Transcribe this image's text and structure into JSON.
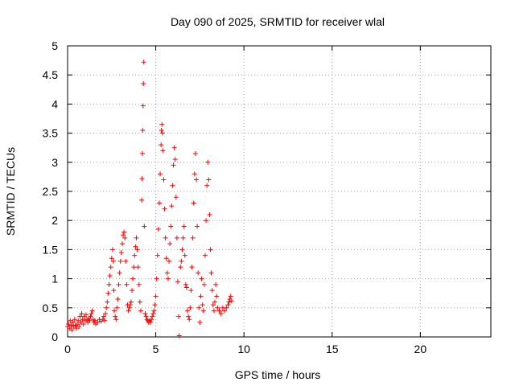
{
  "chart_data": {
    "type": "scatter",
    "title": "Day 090 of 2025, SRMTID for receiver wlal",
    "xlabel": "GPS time / hours",
    "ylabel": "SRMTID / TECUs",
    "xlim": [
      0,
      24
    ],
    "ylim": [
      0,
      5
    ],
    "xticks": [
      0,
      5,
      10,
      15,
      20
    ],
    "yticks": [
      0,
      0.5,
      1,
      1.5,
      2,
      2.5,
      3,
      3.5,
      4,
      4.5,
      5
    ],
    "xtick_labels": [
      "0",
      "5",
      "10",
      "15",
      "20"
    ],
    "ytick_labels": [
      "0",
      "0.5",
      "1",
      "1.5",
      "2",
      "2.5",
      "3",
      "3.5",
      "4",
      "4.5",
      "5"
    ],
    "grid": true,
    "marker": "+",
    "color": "#ff0000",
    "series": [
      {
        "name": "SRMTID",
        "points": [
          [
            0.0,
            0.18
          ],
          [
            0.05,
            0.22
          ],
          [
            0.1,
            0.15
          ],
          [
            0.15,
            0.28
          ],
          [
            0.2,
            0.2
          ],
          [
            0.25,
            0.12
          ],
          [
            0.3,
            0.25
          ],
          [
            0.35,
            0.18
          ],
          [
            0.4,
            0.3
          ],
          [
            0.45,
            0.2
          ],
          [
            0.5,
            0.15
          ],
          [
            0.55,
            0.22
          ],
          [
            0.6,
            0.28
          ],
          [
            0.65,
            0.18
          ],
          [
            0.7,
            0.35
          ],
          [
            0.75,
            0.25
          ],
          [
            0.8,
            0.4
          ],
          [
            0.85,
            0.3
          ],
          [
            0.9,
            0.22
          ],
          [
            0.95,
            0.35
          ],
          [
            1.0,
            0.28
          ],
          [
            1.05,
            0.38
          ],
          [
            1.1,
            0.3
          ],
          [
            1.15,
            0.25
          ],
          [
            1.2,
            0.32
          ],
          [
            1.25,
            0.28
          ],
          [
            1.3,
            0.35
          ],
          [
            1.35,
            0.4
          ],
          [
            1.4,
            0.45
          ],
          [
            1.45,
            0.3
          ],
          [
            1.5,
            0.25
          ],
          [
            1.55,
            0.28
          ],
          [
            1.6,
            0.22
          ],
          [
            1.7,
            0.25
          ],
          [
            1.8,
            0.3
          ],
          [
            1.9,
            0.27
          ],
          [
            2.0,
            0.3
          ],
          [
            2.05,
            0.35
          ],
          [
            2.1,
            0.28
          ],
          [
            2.15,
            0.4
          ],
          [
            2.2,
            0.5
          ],
          [
            2.25,
            0.6
          ],
          [
            2.3,
            0.75
          ],
          [
            2.35,
            0.9
          ],
          [
            2.4,
            1.05
          ],
          [
            2.45,
            1.2
          ],
          [
            2.5,
            1.35
          ],
          [
            2.55,
            1.5
          ],
          [
            2.6,
            1.3
          ],
          [
            2.62,
            0.8
          ],
          [
            2.65,
            0.45
          ],
          [
            2.7,
            0.35
          ],
          [
            2.75,
            0.3
          ],
          [
            2.8,
            0.5
          ],
          [
            2.85,
            0.65
          ],
          [
            2.9,
            0.9
          ],
          [
            2.95,
            1.1
          ],
          [
            3.0,
            1.3
          ],
          [
            3.05,
            1.45
          ],
          [
            3.1,
            1.6
          ],
          [
            3.15,
            1.75
          ],
          [
            3.2,
            1.8
          ],
          [
            3.25,
            1.7
          ],
          [
            3.3,
            1.3
          ],
          [
            3.35,
            0.9
          ],
          [
            3.4,
            0.55
          ],
          [
            3.45,
            0.45
          ],
          [
            3.5,
            0.5
          ],
          [
            3.55,
            0.55
          ],
          [
            3.6,
            0.6
          ],
          [
            3.65,
            0.8
          ],
          [
            3.7,
            1.0
          ],
          [
            3.75,
            1.2
          ],
          [
            3.8,
            1.4
          ],
          [
            3.85,
            1.55
          ],
          [
            3.9,
            1.7
          ],
          [
            3.95,
            1.5
          ],
          [
            4.0,
            1.2
          ],
          [
            4.05,
            0.9
          ],
          [
            4.1,
            0.6
          ],
          [
            4.15,
            0.45
          ],
          [
            4.2,
            2.35
          ],
          [
            4.22,
            2.72
          ],
          [
            4.24,
            3.15
          ],
          [
            4.26,
            3.55
          ],
          [
            4.28,
            3.97
          ],
          [
            4.3,
            4.35
          ],
          [
            4.32,
            4.72
          ],
          [
            4.35,
            1.9
          ],
          [
            4.4,
            0.4
          ],
          [
            4.45,
            0.35
          ],
          [
            4.5,
            0.3
          ],
          [
            4.55,
            0.28
          ],
          [
            4.6,
            0.25
          ],
          [
            4.65,
            0.28
          ],
          [
            4.7,
            0.25
          ],
          [
            4.75,
            0.3
          ],
          [
            4.8,
            0.35
          ],
          [
            4.85,
            0.4
          ],
          [
            4.9,
            0.45
          ],
          [
            4.95,
            0.55
          ],
          [
            5.0,
            0.7
          ],
          [
            5.05,
            1.0
          ],
          [
            5.1,
            1.4
          ],
          [
            5.15,
            1.85
          ],
          [
            5.2,
            2.3
          ],
          [
            5.25,
            2.8
          ],
          [
            5.3,
            3.3
          ],
          [
            5.32,
            3.55
          ],
          [
            5.35,
            3.65
          ],
          [
            5.38,
            3.5
          ],
          [
            5.4,
            3.2
          ],
          [
            5.45,
            2.7
          ],
          [
            5.5,
            2.2
          ],
          [
            5.55,
            1.7
          ],
          [
            5.6,
            1.35
          ],
          [
            5.65,
            1.1
          ],
          [
            5.7,
            1.0
          ],
          [
            5.75,
            1.3
          ],
          [
            5.8,
            1.6
          ],
          [
            5.85,
            1.9
          ],
          [
            5.9,
            2.25
          ],
          [
            5.95,
            2.6
          ],
          [
            6.0,
            2.95
          ],
          [
            6.05,
            3.25
          ],
          [
            6.1,
            3.05
          ],
          [
            6.15,
            2.4
          ],
          [
            6.2,
            1.7
          ],
          [
            6.25,
            0.95
          ],
          [
            6.3,
            0.35
          ],
          [
            6.33,
            0.02
          ],
          [
            6.4,
            1.2
          ],
          [
            6.45,
            1.3
          ],
          [
            6.5,
            1.5
          ],
          [
            6.55,
            1.7
          ],
          [
            6.6,
            1.9
          ],
          [
            6.65,
            1.4
          ],
          [
            6.7,
            0.9
          ],
          [
            6.75,
            0.85
          ],
          [
            6.8,
            0.45
          ],
          [
            6.85,
            0.35
          ],
          [
            6.9,
            0.3
          ],
          [
            6.95,
            0.5
          ],
          [
            7.0,
            0.8
          ],
          [
            7.05,
            1.2
          ],
          [
            7.1,
            1.7
          ],
          [
            7.15,
            2.3
          ],
          [
            7.2,
            2.8
          ],
          [
            7.25,
            3.15
          ],
          [
            7.3,
            2.7
          ],
          [
            7.35,
            1.9
          ],
          [
            7.4,
            1.1
          ],
          [
            7.45,
            0.5
          ],
          [
            7.5,
            0.25
          ],
          [
            7.55,
            0.7
          ],
          [
            7.6,
            1.0
          ],
          [
            7.65,
            0.55
          ],
          [
            7.7,
            0.45
          ],
          [
            7.75,
            0.9
          ],
          [
            7.8,
            1.4
          ],
          [
            7.85,
            2.0
          ],
          [
            7.9,
            2.6
          ],
          [
            7.95,
            3.0
          ],
          [
            8.0,
            2.7
          ],
          [
            8.05,
            2.1
          ],
          [
            8.1,
            1.5
          ],
          [
            8.15,
            1.1
          ],
          [
            8.2,
            0.8
          ],
          [
            8.25,
            0.55
          ],
          [
            8.3,
            0.45
          ],
          [
            8.35,
            0.6
          ],
          [
            8.4,
            0.9
          ],
          [
            8.45,
            0.7
          ],
          [
            8.5,
            0.5
          ],
          [
            8.6,
            0.45
          ],
          [
            8.7,
            0.4
          ],
          [
            8.8,
            0.5
          ],
          [
            8.9,
            0.45
          ],
          [
            9.0,
            0.5
          ],
          [
            9.1,
            0.55
          ],
          [
            9.15,
            0.6
          ],
          [
            9.2,
            0.65
          ],
          [
            9.25,
            0.7
          ],
          [
            9.3,
            0.62
          ]
        ]
      }
    ]
  }
}
